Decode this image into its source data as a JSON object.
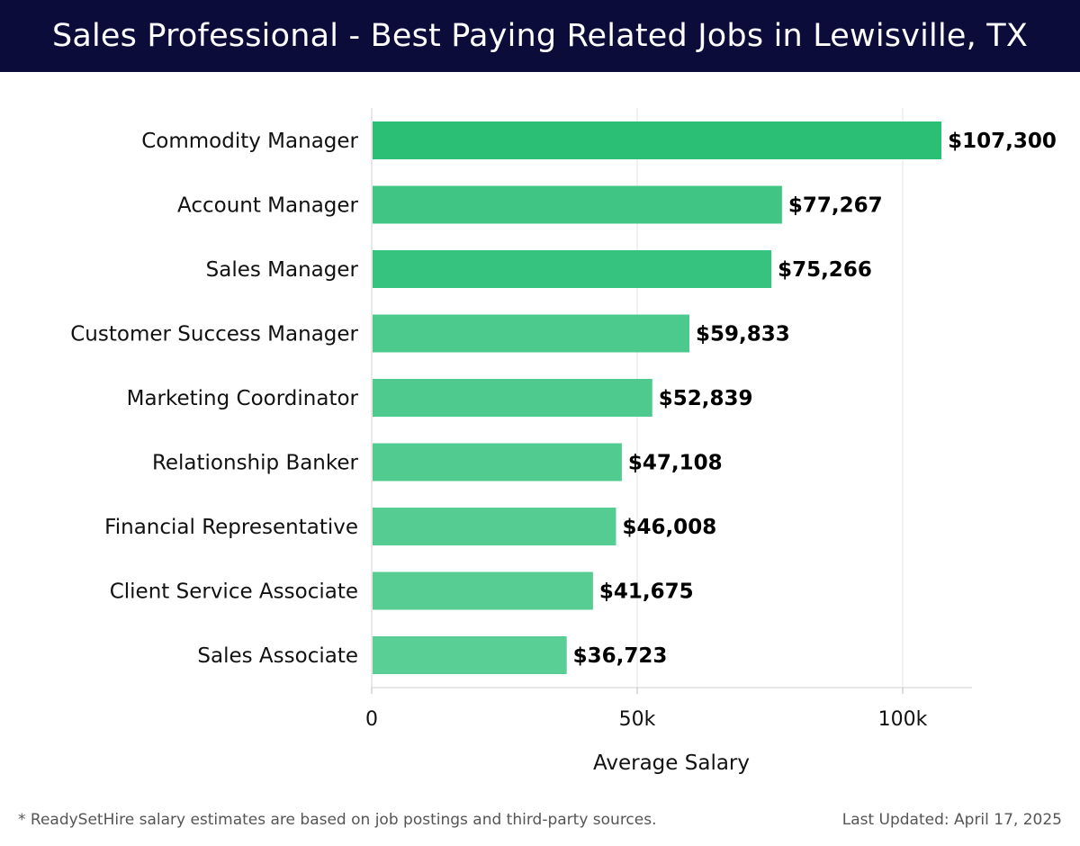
{
  "header": {
    "title": "Sales Professional - Best Paying Related Jobs in Lewisville, TX",
    "background_color": "#0b0c3a"
  },
  "chart_data": {
    "type": "bar",
    "orientation": "horizontal",
    "title": "Sales Professional - Best Paying Related Jobs in Lewisville, TX",
    "xlabel": "Average Salary",
    "ylabel": "",
    "xlim": [
      0,
      112500
    ],
    "xticks": [
      0,
      50000,
      100000
    ],
    "xtick_labels": [
      "0",
      "50k",
      "100k"
    ],
    "grid": "vertical",
    "categories": [
      "Commodity Manager",
      "Account Manager",
      "Sales Manager",
      "Customer Success Manager",
      "Marketing Coordinator",
      "Relationship Banker",
      "Financial Representative",
      "Client Service Associate",
      "Sales Associate"
    ],
    "values": [
      107300,
      77267,
      75266,
      59833,
      52839,
      47108,
      46008,
      41675,
      36723
    ],
    "value_labels": [
      "$107,300",
      "$77,267",
      "$75,266",
      "$59,833",
      "$52,839",
      "$47,108",
      "$46,008",
      "$41,675",
      "$36,723"
    ],
    "colors": [
      "#2bbf76",
      "#40c585",
      "#36c37f",
      "#4cc98c",
      "#4fca8e",
      "#52cb90",
      "#55cc92",
      "#57cd94",
      "#59ce95"
    ]
  },
  "footer": {
    "note": "* ReadySetHire salary estimates are based on job postings and third-party sources.",
    "updated": "Last Updated: April 17, 2025"
  }
}
